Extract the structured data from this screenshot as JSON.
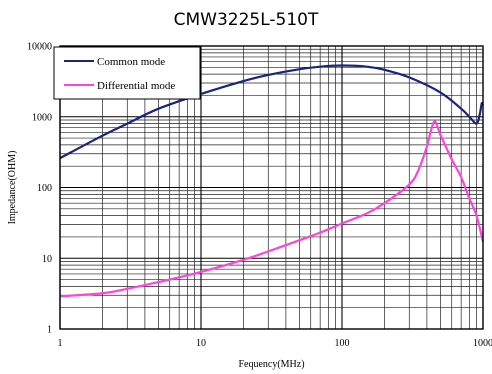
{
  "chart_data": {
    "type": "line",
    "title": "CMW3225L-510T",
    "xlabel": "Fequency(MHz)",
    "ylabel": "Impedance(OHM)",
    "x_scale": "log",
    "y_scale": "log",
    "xlim": [
      1,
      1000
    ],
    "ylim": [
      1,
      10000
    ],
    "x_ticks": [
      {
        "value": 1,
        "label": "1"
      },
      {
        "value": 10,
        "label": "10"
      },
      {
        "value": 100,
        "label": "100"
      },
      {
        "value": 1000,
        "label": "1000"
      }
    ],
    "y_ticks": [
      {
        "value": 1,
        "label": "1"
      },
      {
        "value": 10,
        "label": "10"
      },
      {
        "value": 100,
        "label": "100"
      },
      {
        "value": 1000,
        "label": "1000"
      },
      {
        "value": 10000,
        "label": "10000"
      }
    ],
    "grid": true,
    "legend_position": "top-left",
    "series": [
      {
        "name": "Common mode",
        "color": "#1a237e",
        "points": [
          [
            1,
            260
          ],
          [
            2,
            540
          ],
          [
            3,
            800
          ],
          [
            5,
            1300
          ],
          [
            10,
            2100
          ],
          [
            20,
            3200
          ],
          [
            30,
            3900
          ],
          [
            50,
            4700
          ],
          [
            70,
            5100
          ],
          [
            100,
            5300
          ],
          [
            150,
            5100
          ],
          [
            200,
            4600
          ],
          [
            300,
            3600
          ],
          [
            500,
            2200
          ],
          [
            700,
            1300
          ],
          [
            800,
            1000
          ],
          [
            900,
            800
          ],
          [
            950,
            1100
          ],
          [
            980,
            1550
          ],
          [
            1000,
            1450
          ]
        ]
      },
      {
        "name": "Differential mode",
        "color": "#ff44dd",
        "points": [
          [
            1,
            2.9
          ],
          [
            2,
            3.2
          ],
          [
            3,
            3.7
          ],
          [
            5,
            4.6
          ],
          [
            10,
            6.4
          ],
          [
            20,
            9.5
          ],
          [
            30,
            12.5
          ],
          [
            50,
            18
          ],
          [
            70,
            23
          ],
          [
            100,
            31
          ],
          [
            150,
            43
          ],
          [
            200,
            60
          ],
          [
            300,
            110
          ],
          [
            350,
            180
          ],
          [
            400,
            380
          ],
          [
            450,
            850
          ],
          [
            500,
            550
          ],
          [
            600,
            250
          ],
          [
            700,
            140
          ],
          [
            800,
            70
          ],
          [
            900,
            40
          ],
          [
            1000,
            17
          ]
        ]
      }
    ]
  }
}
